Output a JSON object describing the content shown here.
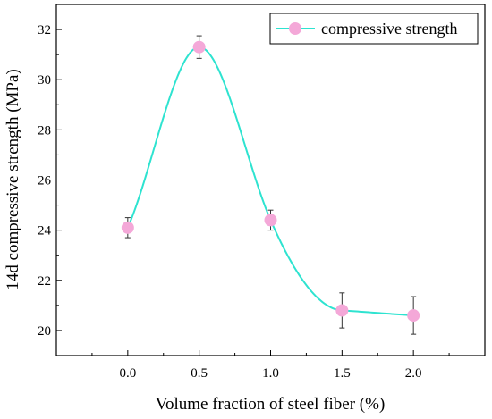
{
  "chart_data": {
    "type": "scatter",
    "title": "",
    "xlabel": "Volume fraction of steel fiber (%)",
    "ylabel": "14d compressive strength (MPa)",
    "xlim": [
      -0.5,
      2.5
    ],
    "ylim": [
      19,
      33
    ],
    "x_ticks": [
      "0.0",
      "0.5",
      "1.0",
      "1.5",
      "2.0"
    ],
    "y_ticks": [
      "20",
      "22",
      "24",
      "26",
      "28",
      "30",
      "32"
    ],
    "series": [
      {
        "name": "compressive strength",
        "x": [
          0.0,
          0.5,
          1.0,
          1.5,
          2.0
        ],
        "y": [
          24.1,
          31.3,
          24.4,
          20.8,
          20.6
        ],
        "error": [
          0.4,
          0.45,
          0.4,
          0.7,
          0.75
        ],
        "marker_color": "#f4a8d8",
        "line_color": "#2ee3d0",
        "fit_curve": "smooth"
      }
    ],
    "legend_position": "top-right",
    "grid": false
  }
}
